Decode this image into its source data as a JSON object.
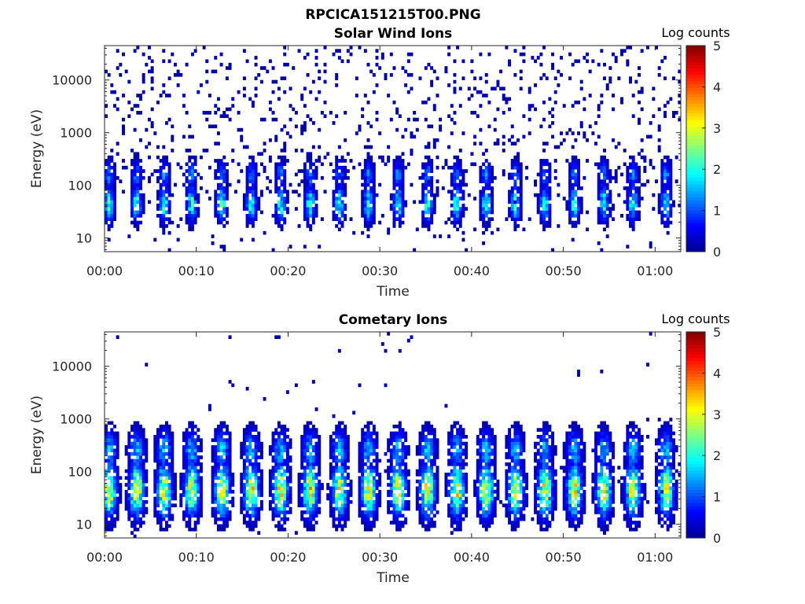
{
  "figure_title": "RPCICA151215T00.PNG",
  "colormap": [
    "#00008f",
    "#0000ff",
    "#0080ff",
    "#00ffff",
    "#80ff80",
    "#ffff00",
    "#ff8000",
    "#ff0000",
    "#800000"
  ],
  "chart_data": [
    {
      "type": "heatmap",
      "title": "Solar Wind Ions",
      "xlabel": "Time",
      "ylabel": "Energy (eV)",
      "xtick_labels": [
        "00:00",
        "00:10",
        "00:20",
        "00:30",
        "00:40",
        "00:50",
        "01:00"
      ],
      "xtick_minutes": [
        0,
        10,
        20,
        30,
        40,
        50,
        60
      ],
      "xlim_minutes": [
        0,
        62.8
      ],
      "ytick_labels": [
        "10",
        "100",
        "1000",
        "10000"
      ],
      "ytick_values": [
        10,
        100,
        1000,
        10000
      ],
      "ylim": [
        5.5,
        45000
      ],
      "yscale": "log",
      "colorbar_label": "Log counts",
      "colorbar_ticks": [
        "0",
        "1",
        "2",
        "3",
        "4",
        "5"
      ],
      "clim": [
        0,
        5
      ],
      "burst_centers_minutes": [
        0.5,
        3.5,
        6.5,
        9.5,
        12.8,
        16.0,
        19.2,
        22.4,
        25.6,
        28.8,
        32.0,
        35.2,
        38.4,
        41.6,
        44.8,
        48.0,
        51.2,
        54.4,
        57.6,
        61.2
      ],
      "peak_log_counts": 2.2
    },
    {
      "type": "heatmap",
      "title": "Cometary Ions",
      "xlabel": "Time",
      "ylabel": "Energy (eV)",
      "xtick_labels": [
        "00:00",
        "00:10",
        "00:20",
        "00:30",
        "00:40",
        "00:50",
        "01:00"
      ],
      "xtick_minutes": [
        0,
        10,
        20,
        30,
        40,
        50,
        60
      ],
      "xlim_minutes": [
        0,
        62.8
      ],
      "ytick_labels": [
        "10",
        "100",
        "1000",
        "10000"
      ],
      "ytick_values": [
        10,
        100,
        1000,
        10000
      ],
      "ylim": [
        5.5,
        45000
      ],
      "yscale": "log",
      "colorbar_label": "Log counts",
      "colorbar_ticks": [
        "0",
        "1",
        "2",
        "3",
        "4",
        "5"
      ],
      "clim": [
        0,
        5
      ],
      "burst_centers_minutes": [
        0.5,
        3.5,
        6.5,
        9.5,
        12.8,
        16.0,
        19.2,
        22.4,
        25.6,
        28.8,
        32.0,
        35.2,
        38.4,
        41.6,
        44.8,
        48.0,
        51.2,
        54.4,
        57.6,
        61.2
      ],
      "peak_log_counts": 3.3
    }
  ]
}
